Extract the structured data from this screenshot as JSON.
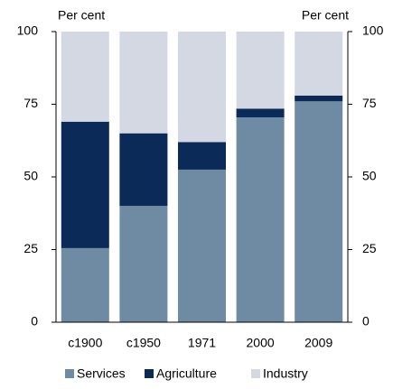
{
  "chart_data": {
    "type": "stacked_bar",
    "y_label": "Per cent",
    "y2_label": "Per cent",
    "categories": [
      "c1900",
      "c1950",
      "1971",
      "2000",
      "2009"
    ],
    "series": [
      {
        "name": "Services",
        "color": "#6f8aa3",
        "values": [
          25.5,
          40,
          52.5,
          70.5,
          76
        ]
      },
      {
        "name": "Agriculture",
        "color": "#0b2a58",
        "values": [
          43.5,
          25,
          9.5,
          3,
          2
        ]
      },
      {
        "name": "Industry",
        "color": "#d3d8e2",
        "values": [
          31,
          35,
          38,
          26.5,
          22
        ]
      }
    ],
    "ylim": [
      0,
      100
    ],
    "yticks": [
      0,
      25,
      50,
      75,
      100
    ],
    "y2lim": [
      0,
      100
    ],
    "y2ticks": [
      0,
      25,
      50,
      75,
      100
    ],
    "legend": "bottom"
  }
}
